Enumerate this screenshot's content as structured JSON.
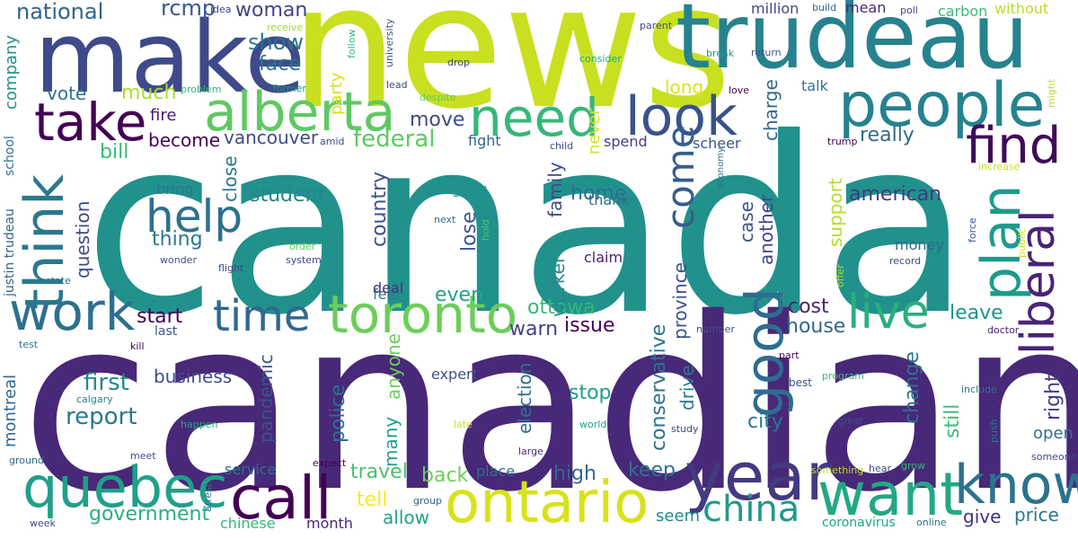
{
  "words": [
    {
      "text": "canada",
      "color": "#21918c"
    },
    {
      "text": "canadian",
      "color": "#482878"
    },
    {
      "text": "news",
      "color": "#c8e020"
    },
    {
      "text": "trudeau",
      "color": "#26828e"
    },
    {
      "text": "make",
      "color": "#3e4a89"
    },
    {
      "text": "people",
      "color": "#26828e"
    },
    {
      "text": "year",
      "color": "#443983"
    },
    {
      "text": "toronto",
      "color": "#6ccd5a"
    },
    {
      "text": "alberta",
      "color": "#5ec962"
    },
    {
      "text": "want",
      "color": "#22a884"
    },
    {
      "text": "ontario",
      "color": "#d8e219"
    },
    {
      "text": "quebec",
      "color": "#1fa088"
    },
    {
      "text": "call",
      "color": "#440154"
    },
    {
      "text": "need",
      "color": "#35b779"
    },
    {
      "text": "look",
      "color": "#3b528b"
    },
    {
      "text": "know",
      "color": "#2c728e"
    },
    {
      "text": "take",
      "color": "#440154"
    },
    {
      "text": "work",
      "color": "#2d708e"
    },
    {
      "text": "time",
      "color": "#31688e"
    },
    {
      "text": "help",
      "color": "#2d708e"
    },
    {
      "text": "find",
      "color": "#3f0c5a"
    },
    {
      "text": "think",
      "color": "#2a788e"
    },
    {
      "text": "plan",
      "color": "#1e9b8a"
    },
    {
      "text": "liberal",
      "color": "#482475"
    },
    {
      "text": "good",
      "color": "#2f6c8e"
    },
    {
      "text": "live",
      "color": "#29af7f"
    },
    {
      "text": "china",
      "color": "#1f9a8a"
    },
    {
      "text": "come",
      "color": "#365c8d"
    },
    {
      "text": "federal",
      "color": "#5ec962"
    },
    {
      "text": "report",
      "color": "#2a788e"
    },
    {
      "text": "first",
      "color": "#24878e"
    },
    {
      "text": "government",
      "color": "#29af7f"
    },
    {
      "text": "national",
      "color": "#33638d"
    },
    {
      "text": "show",
      "color": "#2c728e"
    },
    {
      "text": "face",
      "color": "#2c728e"
    },
    {
      "text": "woman",
      "color": "#414487"
    },
    {
      "text": "rcmp",
      "color": "#39568c"
    },
    {
      "text": "vote",
      "color": "#2d708e"
    },
    {
      "text": "much",
      "color": "#addc30"
    },
    {
      "text": "fire",
      "color": "#481b6d"
    },
    {
      "text": "bill",
      "color": "#3aba76"
    },
    {
      "text": "become",
      "color": "#440154"
    },
    {
      "text": "vancouver",
      "color": "#3e4a89"
    },
    {
      "text": "move",
      "color": "#3e4a89"
    },
    {
      "text": "start",
      "color": "#440154"
    },
    {
      "text": "thing",
      "color": "#2a788e"
    },
    {
      "text": "student",
      "color": "#24878e"
    },
    {
      "text": "country",
      "color": "#3b528b"
    },
    {
      "text": "really",
      "color": "#31688e"
    },
    {
      "text": "american",
      "color": "#453781"
    },
    {
      "text": "ottawa",
      "color": "#35b779"
    },
    {
      "text": "issue",
      "color": "#440154"
    },
    {
      "text": "warn",
      "color": "#414487"
    },
    {
      "text": "cost",
      "color": "#482475"
    },
    {
      "text": "house",
      "color": "#32658e"
    },
    {
      "text": "leave",
      "color": "#1f948c"
    },
    {
      "text": "right",
      "color": "#433e85"
    },
    {
      "text": "stop",
      "color": "#1f9e89"
    },
    {
      "text": "city",
      "color": "#2a788e"
    },
    {
      "text": "high",
      "color": "#31688e"
    },
    {
      "text": "keep",
      "color": "#2c728e"
    },
    {
      "text": "back",
      "color": "#6ece58"
    },
    {
      "text": "travel",
      "color": "#4ac16d"
    },
    {
      "text": "tell",
      "color": "#fde725"
    },
    {
      "text": "allow",
      "color": "#20a386"
    },
    {
      "text": "even",
      "color": "#20a386"
    },
    {
      "text": "police",
      "color": "#2d708e"
    },
    {
      "text": "business",
      "color": "#3e4a89"
    },
    {
      "text": "pandemic",
      "color": "#3b528b"
    },
    {
      "text": "question",
      "color": "#3e4a89"
    },
    {
      "text": "montreal",
      "color": "#31688e"
    },
    {
      "text": "company",
      "color": "#21918c"
    },
    {
      "text": "give",
      "color": "#46327e"
    },
    {
      "text": "price",
      "color": "#2c728e"
    },
    {
      "text": "seem",
      "color": "#24878e"
    },
    {
      "text": "still",
      "color": "#3aba76"
    },
    {
      "text": "change",
      "color": "#2c728e"
    },
    {
      "text": "open",
      "color": "#2d708e"
    },
    {
      "text": "drive",
      "color": "#2a788e"
    },
    {
      "text": "province",
      "color": "#3b528b"
    },
    {
      "text": "conservative",
      "color": "#2c728e"
    },
    {
      "text": "election",
      "color": "#2c728e"
    },
    {
      "text": "worker",
      "color": "#23898e"
    },
    {
      "text": "family",
      "color": "#3e4a89"
    },
    {
      "text": "home",
      "color": "#2d708e"
    },
    {
      "text": "case",
      "color": "#3b528b"
    },
    {
      "text": "another",
      "color": "#414487"
    },
    {
      "text": "support",
      "color": "#b5de2b"
    },
    {
      "text": "charge",
      "color": "#31688e"
    },
    {
      "text": "long",
      "color": "#dde318"
    },
    {
      "text": "never",
      "color": "#d2e21b"
    },
    {
      "text": "spend",
      "color": "#433e85"
    },
    {
      "text": "scheer",
      "color": "#3b528b"
    },
    {
      "text": "lose",
      "color": "#39568c"
    },
    {
      "text": "anyone",
      "color": "#6ccd5a"
    },
    {
      "text": "many",
      "color": "#1fa088"
    },
    {
      "text": "close",
      "color": "#2a788e"
    },
    {
      "text": "party",
      "color": "#d8e219"
    },
    {
      "text": "million",
      "color": "#3e4a89"
    },
    {
      "text": "mean",
      "color": "#482878"
    },
    {
      "text": "carbon",
      "color": "#3aba76"
    },
    {
      "text": "without",
      "color": "#b8de29"
    },
    {
      "text": "fight",
      "color": "#33638d"
    },
    {
      "text": "feel",
      "color": "#2a788e"
    },
    {
      "text": "deal",
      "color": "#46337e"
    },
    {
      "text": "money",
      "color": "#31688e"
    },
    {
      "text": "claim",
      "color": "#482173"
    },
    {
      "text": "expert",
      "color": "#3b528b"
    },
    {
      "text": "place",
      "color": "#2c728e"
    },
    {
      "text": "service",
      "color": "#2c728e"
    },
    {
      "text": "chinese",
      "color": "#35b779"
    },
    {
      "text": "month",
      "color": "#482677"
    },
    {
      "text": "bring",
      "color": "#2a788e"
    },
    {
      "text": "send",
      "color": "#21918c"
    },
    {
      "text": "thank",
      "color": "#2e6e8e"
    },
    {
      "text": "talk",
      "color": "#2c728e"
    },
    {
      "text": "justin trudeau",
      "color": "#33638d"
    },
    {
      "text": "school",
      "color": "#2c728e"
    },
    {
      "text": "last",
      "color": "#39568c"
    },
    {
      "text": "coronavirus",
      "color": "#20a386"
    },
    {
      "text": "idea",
      "color": "#3e4a89"
    },
    {
      "text": "receive",
      "color": "#a0da39"
    },
    {
      "text": "follow",
      "color": "#35b779"
    },
    {
      "text": "university",
      "color": "#39568c"
    },
    {
      "text": "parent",
      "color": "#3e4a89"
    },
    {
      "text": "build",
      "color": "#31688e"
    },
    {
      "text": "poll",
      "color": "#433e85"
    },
    {
      "text": "consider",
      "color": "#22a884"
    },
    {
      "text": "break",
      "color": "#1f948c"
    },
    {
      "text": "return",
      "color": "#39568c"
    },
    {
      "text": "drop",
      "color": "#3e4a89"
    },
    {
      "text": "love",
      "color": "#440154"
    },
    {
      "text": "problem",
      "color": "#35b779"
    },
    {
      "text": "former",
      "color": "#1f948c"
    },
    {
      "text": "lead",
      "color": "#3e4a89"
    },
    {
      "text": "despite",
      "color": "#5ec962"
    },
    {
      "text": "might",
      "color": "#bddf26"
    },
    {
      "text": "amid",
      "color": "#3e4a89"
    },
    {
      "text": "child",
      "color": "#3e4a89"
    },
    {
      "text": "trump",
      "color": "#440154"
    },
    {
      "text": "economy",
      "color": "#2a788e"
    },
    {
      "text": "increase",
      "color": "#c8e020"
    },
    {
      "text": "next",
      "color": "#2c728e"
    },
    {
      "text": "hold",
      "color": "#4ac16d"
    },
    {
      "text": "order",
      "color": "#5ec962"
    },
    {
      "text": "system",
      "color": "#3e4a89"
    },
    {
      "text": "force",
      "color": "#3b528b"
    },
    {
      "text": "public",
      "color": "#d2e21b"
    },
    {
      "text": "wonder",
      "color": "#3b528b"
    },
    {
      "text": "flight",
      "color": "#3e4a89"
    },
    {
      "text": "state",
      "color": "#2c728e"
    },
    {
      "text": "offer",
      "color": "#addc30"
    },
    {
      "text": "record",
      "color": "#3e4a89"
    },
    {
      "text": "test",
      "color": "#2a788e"
    },
    {
      "text": "kill",
      "color": "#440154"
    },
    {
      "text": "number",
      "color": "#3b528b"
    },
    {
      "text": "part",
      "color": "#440154"
    },
    {
      "text": "doctor",
      "color": "#482475"
    },
    {
      "text": "best",
      "color": "#3b528b"
    },
    {
      "text": "program",
      "color": "#3aba76"
    },
    {
      "text": "include",
      "color": "#2c728e"
    },
    {
      "text": "calgary",
      "color": "#26828e"
    },
    {
      "text": "happen",
      "color": "#22a884"
    },
    {
      "text": "late",
      "color": "#c8e020"
    },
    {
      "text": "world",
      "color": "#1f9e89"
    },
    {
      "text": "study",
      "color": "#3e4a89"
    },
    {
      "text": "great",
      "color": "#3e4a89"
    },
    {
      "text": "push",
      "color": "#2a788e"
    },
    {
      "text": "large",
      "color": "#482878"
    },
    {
      "text": "ground",
      "color": "#31688e"
    },
    {
      "text": "meet",
      "color": "#3b528b"
    },
    {
      "text": "expect",
      "color": "#440154"
    },
    {
      "text": "arrest",
      "color": "#2c728e"
    },
    {
      "text": "group",
      "color": "#31688e"
    },
    {
      "text": "something",
      "color": "#b8de29"
    },
    {
      "text": "hear",
      "color": "#3e4a89"
    },
    {
      "text": "grow",
      "color": "#35b779"
    },
    {
      "text": "someone",
      "color": "#3e4a89"
    },
    {
      "text": "online",
      "color": "#2c728e"
    },
    {
      "text": "week",
      "color": "#3e4a89"
    }
  ]
}
